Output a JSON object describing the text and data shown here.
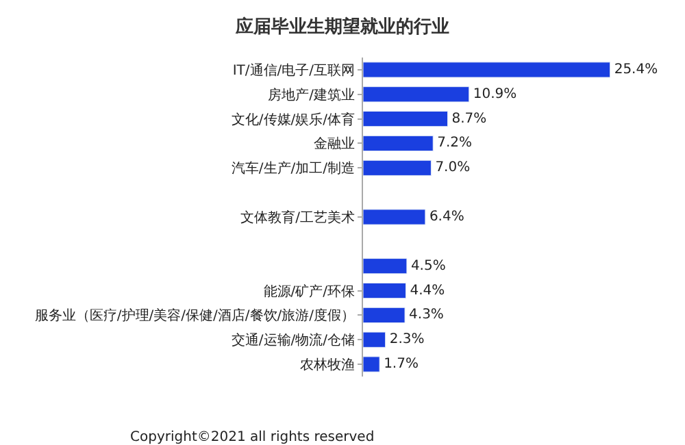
{
  "chart_data": {
    "type": "bar",
    "orientation": "horizontal",
    "title": "应届毕业生期望就业的行业",
    "categories": [
      "IT/通信/电子/互联网",
      "房地产/建筑业",
      "文化/传媒/娱乐/体育",
      "金融业",
      "汽车/生产/加工/制造",
      null,
      "文体教育/工艺美术",
      null,
      null,
      "能源/矿产/环保",
      "服务业（医疗/护理/美容/保健/酒店/餐饮/旅游/度假）",
      "交通/运输/物流/仓储",
      "农林牧渔"
    ],
    "values": [
      25.4,
      10.9,
      8.7,
      7.2,
      7.0,
      null,
      6.4,
      null,
      4.5,
      4.4,
      4.3,
      2.3,
      1.7
    ],
    "value_labels": [
      "25.4%",
      "10.9%",
      "8.7%",
      "7.2%",
      "7.0%",
      null,
      "6.4%",
      null,
      "4.5%",
      "4.4%",
      "4.3%",
      "2.3%",
      "1.7%"
    ],
    "color": "#1a3fe0",
    "annotations": [
      "Copyright©2021 all rights reserved"
    ]
  }
}
